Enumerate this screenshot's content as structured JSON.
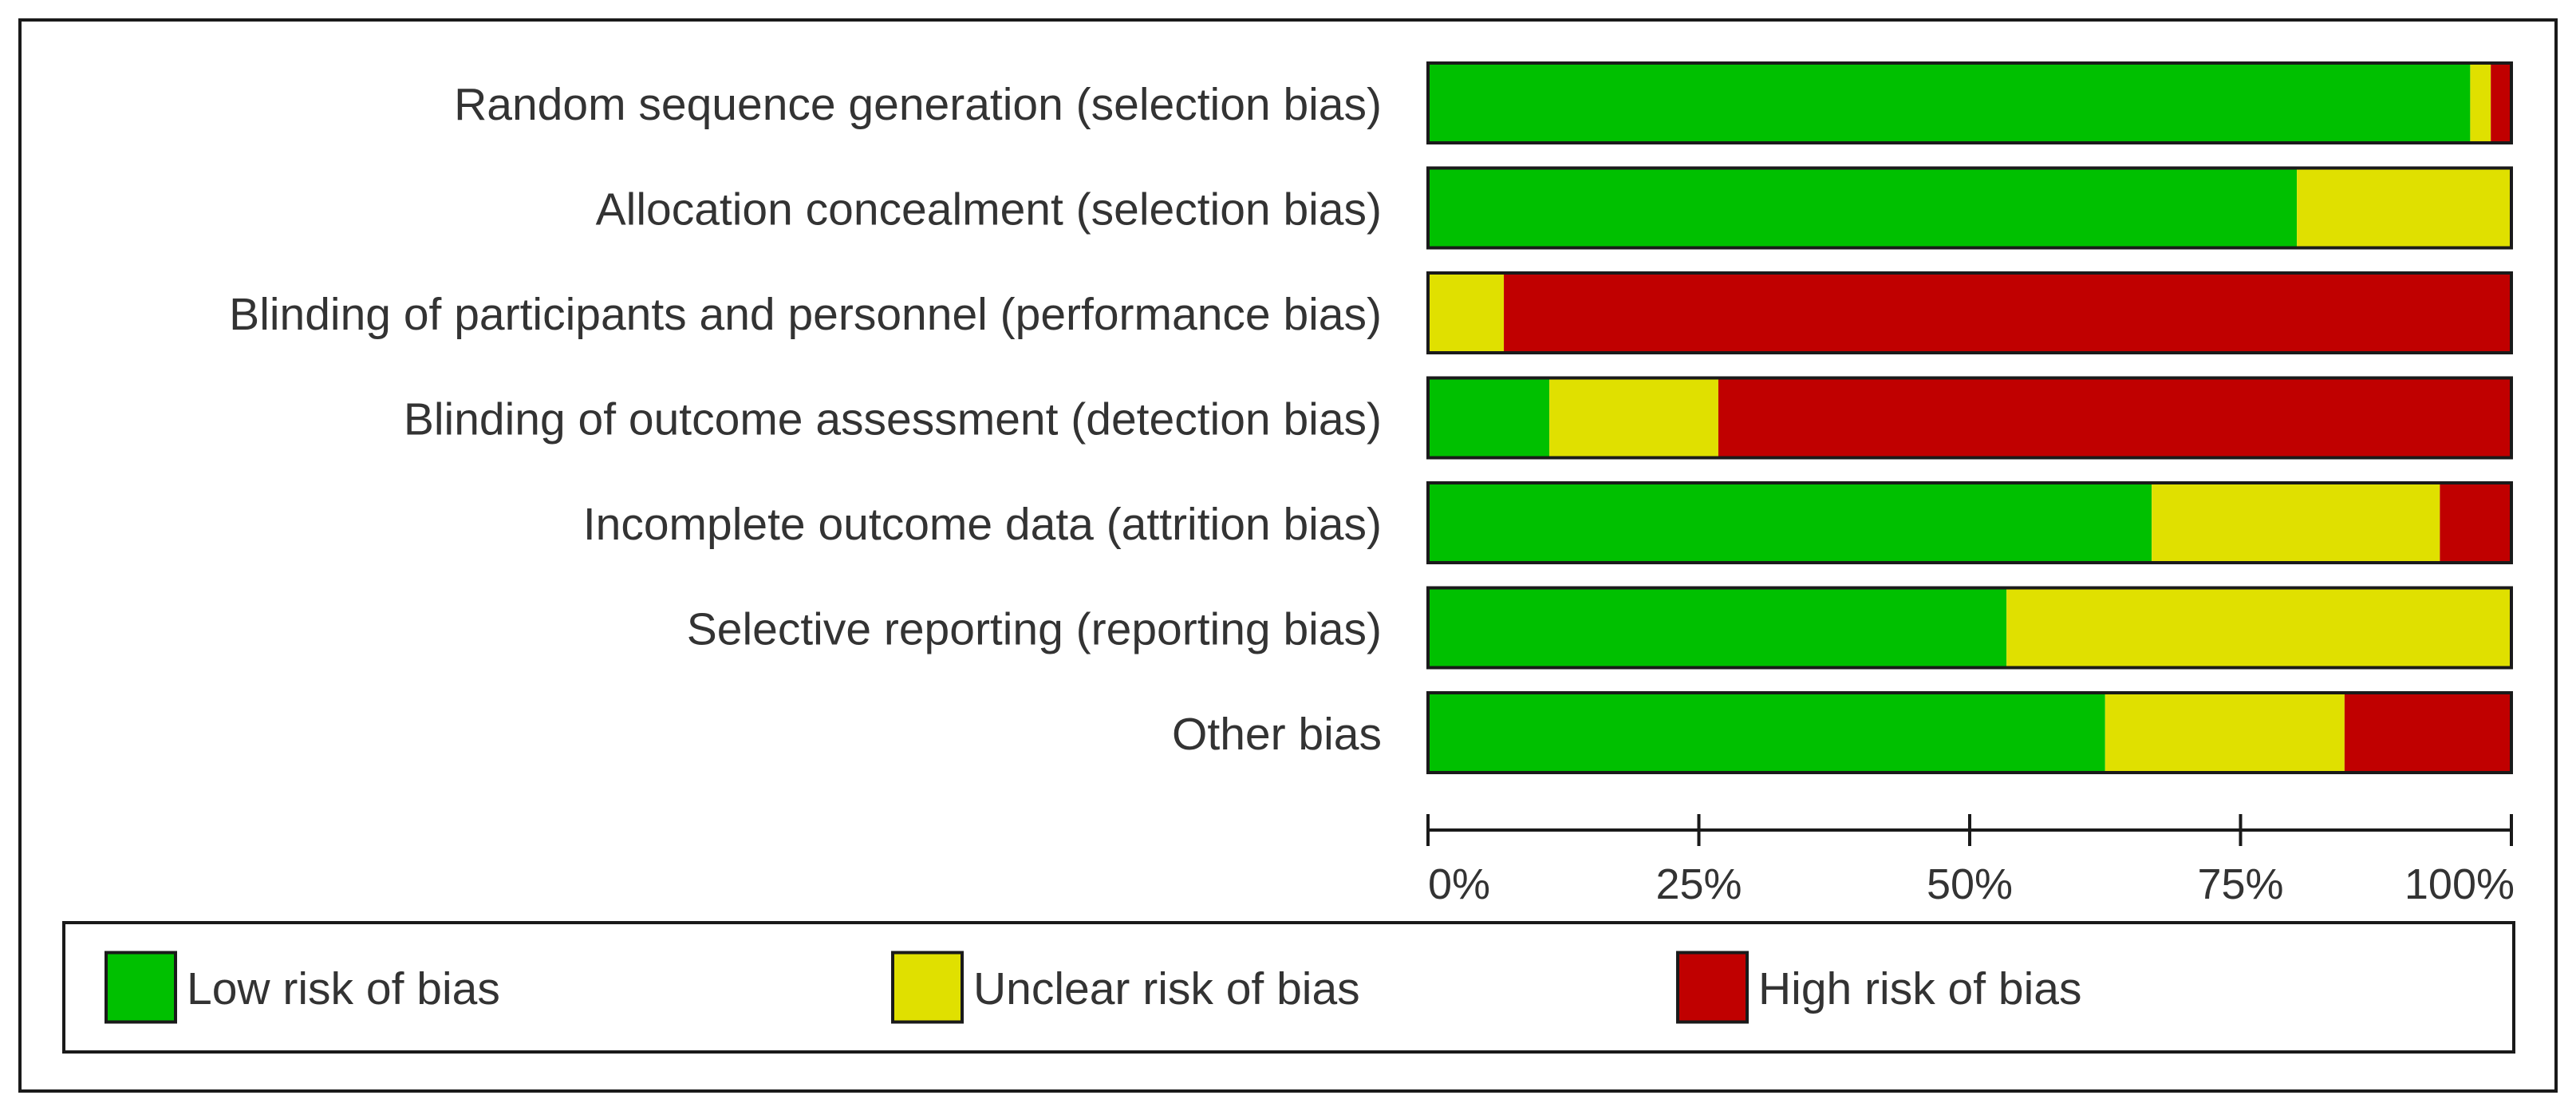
{
  "chart_data": {
    "type": "bar",
    "orientation": "horizontal",
    "stacked": true,
    "categories": [
      "Random sequence generation (selection bias)",
      "Allocation concealment (selection bias)",
      "Blinding of participants and personnel (performance bias)",
      "Blinding of outcome assessment (detection bias)",
      "Incomplete outcome data (attrition bias)",
      "Selective reporting (reporting bias)",
      "Other bias"
    ],
    "series": [
      {
        "name": "Low risk of bias",
        "color": "#00c000",
        "values": [
          96.2,
          80.2,
          0,
          11.2,
          66.8,
          53.4,
          62.5
        ]
      },
      {
        "name": "Unclear risk of bias",
        "color": "#e0e000",
        "values": [
          1.9,
          19.8,
          7.0,
          15.6,
          26.6,
          46.6,
          22.1
        ]
      },
      {
        "name": "High risk of bias",
        "color": "#c00000",
        "values": [
          1.9,
          0,
          93.0,
          73.2,
          6.6,
          0,
          15.4
        ]
      }
    ],
    "xlim": [
      0,
      100
    ],
    "xticks": [
      {
        "value": 0,
        "label": "0%"
      },
      {
        "value": 25,
        "label": "25%"
      },
      {
        "value": 50,
        "label": "50%"
      },
      {
        "value": 75,
        "label": "75%"
      },
      {
        "value": 100,
        "label": "100%"
      }
    ],
    "legend_position": "bottom",
    "grid": false
  }
}
